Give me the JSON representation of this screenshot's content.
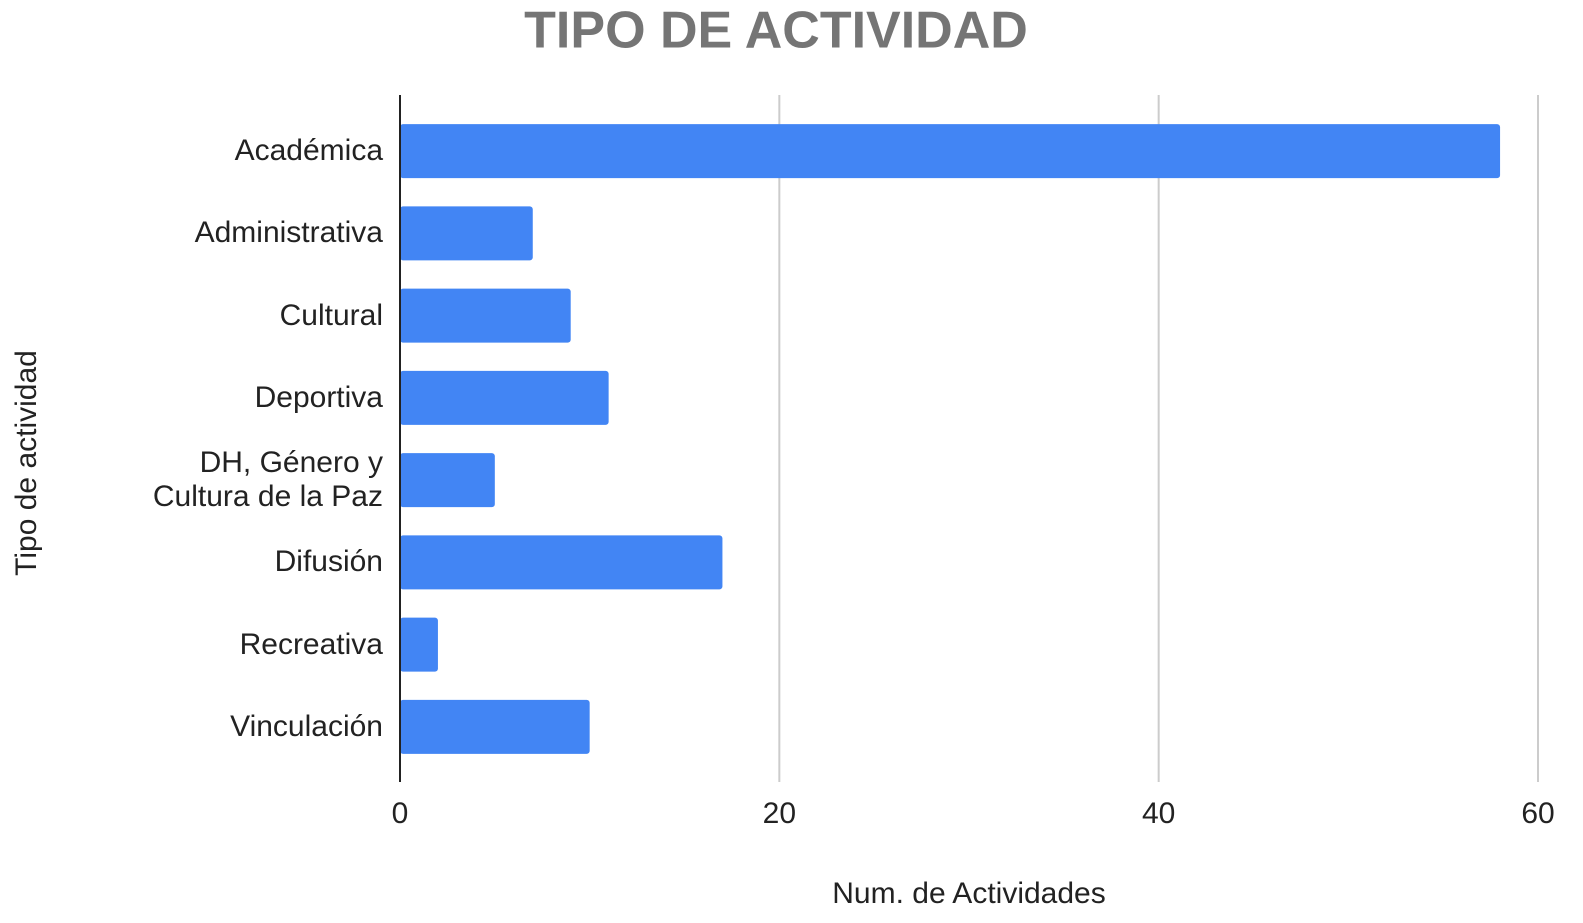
{
  "chart_data": {
    "type": "bar",
    "orientation": "horizontal",
    "title": "TIPO DE ACTIVIDAD",
    "xlabel": "Num. de Actividades",
    "ylabel": "Tipo de actividad",
    "categories": [
      "Académica",
      "Administrativa",
      "Cultural",
      "Deportiva",
      "DH, Género y\nCultura de la Paz",
      "Difusión",
      "Recreativa",
      "Vinculación"
    ],
    "values": [
      58,
      7,
      9,
      11,
      5,
      17,
      2,
      10
    ],
    "color": "#4285f4",
    "xlim": [
      0,
      60
    ],
    "xticks": [
      0,
      20,
      40,
      60
    ],
    "grid": true
  }
}
